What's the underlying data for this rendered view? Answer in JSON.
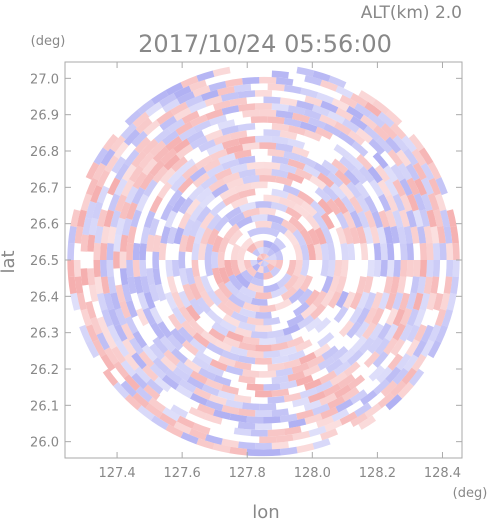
{
  "header": {
    "altitude_label": "ALT(km) 2.0",
    "timestamp": "2017/10/24 05:56:00"
  },
  "chart_data": {
    "type": "heatmap",
    "title": "2017/10/24 05:56:00",
    "subtitle": "ALT(km) 2.0",
    "xlabel": "lon",
    "ylabel": "lat",
    "x_unit": "(deg)",
    "y_unit": "(deg)",
    "xlim": [
      127.24,
      128.46
    ],
    "ylim": [
      25.955,
      27.045
    ],
    "x_ticks": [
      "127.4",
      "127.6",
      "127.8",
      "128.0",
      "128.2",
      "128.4"
    ],
    "y_ticks": [
      "26.0",
      "26.1",
      "26.2",
      "26.3",
      "26.4",
      "26.5",
      "26.6",
      "26.7",
      "26.8",
      "26.9",
      "27.0"
    ],
    "center": [
      127.85,
      26.5
    ],
    "radius_deg_lat": 0.54,
    "positive_color": "#f4a6a6",
    "negative_color": "#a9a9f2",
    "neutral_color": "#ffffff",
    "grid": false
  }
}
